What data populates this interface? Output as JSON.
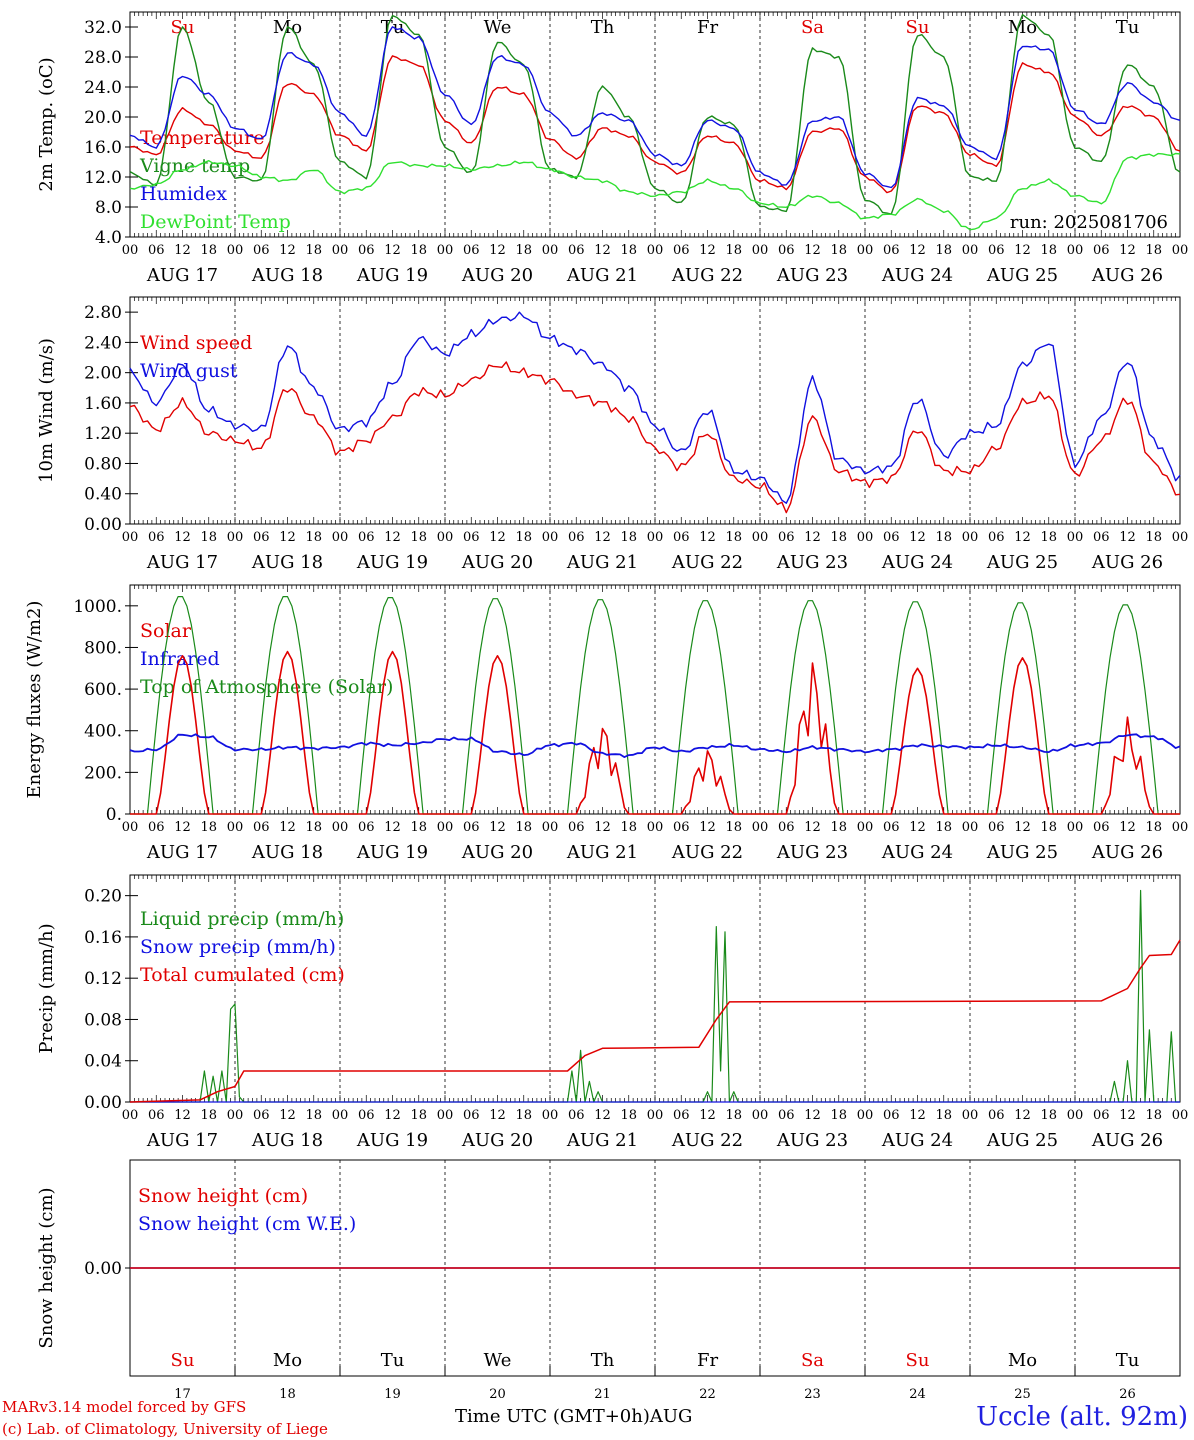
{
  "header": {
    "model": "MARv3.14 model forced by GFS",
    "credit": "(c) Lab. of Climatology, University of Liege",
    "station": "Uccle (alt. 92m)",
    "xaxis_title": "Time UTC (GMT+0h)",
    "month": "AUG"
  },
  "days": [
    {
      "abbr": "Su",
      "date": "AUG 17",
      "num": "17",
      "weekend": true
    },
    {
      "abbr": "Mo",
      "date": "AUG 18",
      "num": "18",
      "weekend": false
    },
    {
      "abbr": "Tu",
      "date": "AUG 19",
      "num": "19",
      "weekend": false
    },
    {
      "abbr": "We",
      "date": "AUG 20",
      "num": "20",
      "weekend": false
    },
    {
      "abbr": "Th",
      "date": "AUG 21",
      "num": "21",
      "weekend": false
    },
    {
      "abbr": "Fr",
      "date": "AUG 22",
      "num": "22",
      "weekend": false
    },
    {
      "abbr": "Sa",
      "date": "AUG 23",
      "num": "23",
      "weekend": true
    },
    {
      "abbr": "Su",
      "date": "AUG 24",
      "num": "24",
      "weekend": true
    },
    {
      "abbr": "Mo",
      "date": "AUG 25",
      "num": "25",
      "weekend": false
    },
    {
      "abbr": "Tu",
      "date": "AUG 26",
      "num": "26",
      "weekend": false
    }
  ],
  "hour_ticks": [
    "00",
    "06",
    "12",
    "18"
  ],
  "colors": {
    "red": "#e00000",
    "green": "#1a8a1a",
    "blue": "#1010e0",
    "lime": "#30e030",
    "axis": "#000000",
    "weekend": "#e00000"
  },
  "chart_data": [
    {
      "type": "line",
      "ylabel": "2m Temp. (oC)",
      "ylim": [
        4.0,
        34.0
      ],
      "yticks": [
        "4.0",
        "8.0",
        "12.0",
        "16.0",
        "20.0",
        "24.0",
        "28.0",
        "32.0"
      ],
      "annotation": "run: 2025081706",
      "x_hours": [
        0,
        6,
        12,
        18,
        24,
        30,
        36,
        42,
        48,
        54,
        60,
        66,
        72,
        78,
        84,
        90,
        96,
        102,
        108,
        114,
        120,
        126,
        132,
        138,
        144,
        150,
        156,
        162,
        168,
        174,
        180,
        186,
        192,
        198,
        204,
        210,
        216,
        222,
        228,
        234,
        240
      ],
      "series": [
        {
          "name": "Temperature",
          "color": "red",
          "values": [
            16.0,
            15.0,
            21.0,
            19.0,
            15.5,
            14.5,
            24.5,
            23.0,
            17.5,
            15.5,
            28.0,
            27.0,
            19.5,
            16.5,
            24.0,
            23.0,
            17.0,
            14.5,
            18.5,
            17.5,
            14.0,
            12.5,
            17.5,
            16.5,
            11.5,
            10.5,
            18.0,
            18.5,
            12.0,
            10.0,
            21.5,
            20.5,
            15.0,
            13.5,
            27.0,
            26.0,
            20.0,
            17.5,
            21.5,
            20.0,
            15.5
          ]
        },
        {
          "name": "Vigne temp",
          "color": "green",
          "values": [
            12.5,
            11.0,
            32.0,
            22.0,
            12.0,
            11.5,
            32.0,
            27.0,
            14.0,
            12.0,
            33.5,
            31.0,
            16.0,
            12.5,
            30.0,
            27.0,
            13.0,
            12.0,
            24.0,
            20.0,
            10.5,
            8.5,
            20.0,
            19.0,
            8.0,
            7.5,
            29.0,
            28.0,
            9.0,
            7.0,
            31.0,
            28.0,
            12.0,
            11.5,
            33.5,
            31.0,
            16.0,
            14.0,
            27.0,
            24.0,
            12.5
          ]
        },
        {
          "name": "Humidex",
          "color": "blue",
          "values": [
            17.5,
            16.0,
            25.5,
            23.0,
            18.5,
            17.0,
            28.5,
            27.0,
            20.5,
            17.5,
            32.0,
            30.5,
            23.0,
            19.0,
            28.0,
            27.0,
            20.5,
            17.5,
            20.5,
            19.5,
            15.0,
            13.5,
            19.5,
            18.5,
            12.5,
            11.0,
            19.5,
            20.0,
            12.5,
            10.5,
            22.5,
            21.5,
            16.0,
            14.5,
            29.5,
            29.0,
            21.0,
            19.0,
            24.5,
            22.0,
            19.5
          ]
        },
        {
          "name": "DewPoint Temp",
          "color": "lime",
          "values": [
            10.5,
            11.0,
            13.0,
            14.0,
            13.5,
            12.0,
            11.5,
            13.0,
            10.0,
            10.5,
            14.0,
            13.5,
            13.5,
            13.0,
            13.5,
            14.0,
            13.0,
            12.0,
            11.5,
            10.0,
            9.5,
            10.0,
            11.5,
            10.5,
            8.5,
            8.0,
            9.5,
            8.5,
            6.5,
            7.0,
            9.0,
            7.5,
            5.0,
            6.5,
            10.5,
            11.5,
            9.5,
            8.5,
            14.5,
            15.0,
            15.0
          ]
        }
      ]
    },
    {
      "type": "line",
      "ylabel": "10m Wind (m/s)",
      "ylim": [
        0.0,
        3.0
      ],
      "yticks": [
        "0.00",
        "0.40",
        "0.80",
        "1.20",
        "1.60",
        "2.00",
        "2.40",
        "2.80"
      ],
      "x_hours": [
        0,
        6,
        12,
        18,
        24,
        30,
        36,
        42,
        48,
        54,
        60,
        66,
        72,
        78,
        84,
        90,
        96,
        102,
        108,
        114,
        120,
        126,
        132,
        138,
        144,
        150,
        156,
        162,
        168,
        174,
        180,
        186,
        192,
        198,
        204,
        210,
        216,
        222,
        228,
        234,
        240
      ],
      "series": [
        {
          "name": "Wind speed",
          "color": "red",
          "values": [
            1.55,
            1.25,
            1.6,
            1.2,
            1.1,
            1.0,
            1.8,
            1.4,
            0.95,
            1.1,
            1.4,
            1.75,
            1.7,
            1.9,
            2.1,
            2.0,
            1.9,
            1.7,
            1.6,
            1.4,
            1.0,
            0.75,
            1.2,
            0.6,
            0.5,
            0.2,
            1.4,
            0.7,
            0.55,
            0.6,
            1.25,
            0.7,
            0.7,
            1.0,
            1.6,
            1.7,
            0.65,
            1.1,
            1.65,
            0.8,
            0.4
          ]
        },
        {
          "name": "Wind gust",
          "color": "blue",
          "values": [
            2.0,
            1.6,
            2.1,
            1.5,
            1.3,
            1.25,
            2.35,
            1.8,
            1.25,
            1.35,
            1.85,
            2.45,
            2.25,
            2.5,
            2.7,
            2.75,
            2.45,
            2.3,
            2.1,
            1.8,
            1.3,
            0.95,
            1.5,
            0.7,
            0.6,
            0.3,
            1.9,
            0.85,
            0.7,
            0.75,
            1.65,
            0.9,
            1.2,
            1.3,
            2.1,
            2.4,
            0.8,
            1.4,
            2.15,
            1.1,
            0.6
          ]
        }
      ]
    },
    {
      "type": "line",
      "ylabel": "Energy fluxes (W/m2)",
      "ylim": [
        0,
        1100
      ],
      "yticks": [
        "0.",
        "200.",
        "400.",
        "600.",
        "800.",
        "1000."
      ],
      "series": [
        {
          "name": "Solar",
          "color": "red",
          "daily_peaks": [
            760,
            780,
            780,
            760,
            460,
            330,
            770,
            700,
            750,
            470
          ]
        },
        {
          "name": "Infrared",
          "color": "blue",
          "values": [
            300,
            310,
            380,
            370,
            310,
            310,
            320,
            315,
            320,
            340,
            330,
            340,
            360,
            360,
            300,
            285,
            330,
            340,
            290,
            280,
            320,
            300,
            320,
            330,
            310,
            300,
            320,
            310,
            300,
            310,
            330,
            325,
            320,
            330,
            320,
            300,
            330,
            340,
            380,
            370,
            320
          ]
        },
        {
          "name": "Top of Atmosphere (Solar)",
          "color": "green",
          "daily_peaks": [
            1050,
            1050,
            1045,
            1040,
            1035,
            1030,
            1030,
            1025,
            1020,
            1010
          ]
        }
      ]
    },
    {
      "type": "line",
      "ylabel": "Precip (mm/h)",
      "ylim": [
        0.0,
        0.22
      ],
      "yticks": [
        "0.00",
        "0.04",
        "0.08",
        "0.12",
        "0.16",
        "0.20"
      ],
      "series": [
        {
          "name": "Liquid precip (mm/h)",
          "color": "green",
          "events": [
            [
              17,
              0.03
            ],
            [
              19,
              0.025
            ],
            [
              21,
              0.03
            ],
            [
              23,
              0.09
            ],
            [
              24,
              0.095
            ],
            [
              25,
              0.005
            ],
            [
              101,
              0.03
            ],
            [
              103,
              0.05
            ],
            [
              105,
              0.02
            ],
            [
              107,
              0.01
            ],
            [
              132,
              0.01
            ],
            [
              134,
              0.17
            ],
            [
              135,
              0.03
            ],
            [
              136,
              0.165
            ],
            [
              138,
              0.01
            ],
            [
              225,
              0.02
            ],
            [
              228,
              0.04
            ],
            [
              231,
              0.205
            ],
            [
              233,
              0.07
            ],
            [
              238,
              0.068
            ]
          ]
        },
        {
          "name": "Snow precip (mm/h)",
          "color": "blue",
          "values": [
            0
          ]
        },
        {
          "name": "Total cumulated (cm)",
          "color": "red",
          "steps": [
            [
              0,
              0.0
            ],
            [
              16,
              0.002
            ],
            [
              20,
              0.01
            ],
            [
              24,
              0.015
            ],
            [
              26,
              0.03
            ],
            [
              100,
              0.03
            ],
            [
              104,
              0.045
            ],
            [
              108,
              0.052
            ],
            [
              130,
              0.053
            ],
            [
              134,
              0.08
            ],
            [
              137,
              0.097
            ],
            [
              222,
              0.098
            ],
            [
              228,
              0.11
            ],
            [
              231,
              0.13
            ],
            [
              233,
              0.142
            ],
            [
              238,
              0.143
            ],
            [
              240,
              0.157
            ]
          ]
        }
      ]
    },
    {
      "type": "line",
      "ylabel": "Snow height (cm)",
      "yticks": [
        "0.00"
      ],
      "series": [
        {
          "name": "Snow height (cm)",
          "color": "red",
          "values": [
            0.0
          ]
        },
        {
          "name": "Snow height (cm W.E.)",
          "color": "blue",
          "values": [
            0.0
          ]
        }
      ]
    }
  ]
}
